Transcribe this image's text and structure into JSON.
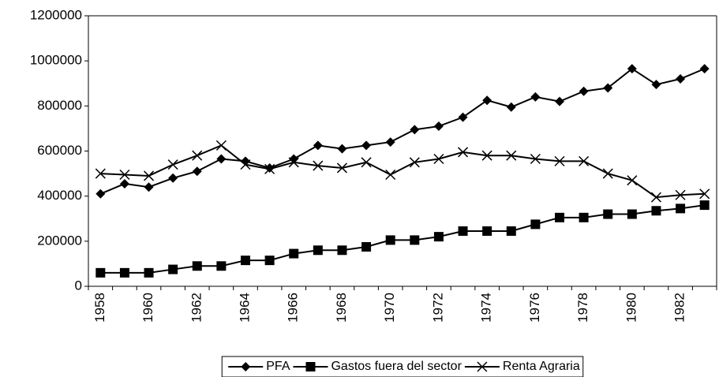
{
  "chart_data": {
    "type": "line",
    "categories": [
      "1958",
      null,
      "1960",
      null,
      "1962",
      null,
      "1964",
      null,
      "1966",
      null,
      "1968",
      null,
      "1970",
      null,
      "1972",
      null,
      "1974",
      null,
      "1976",
      null,
      "1978",
      null,
      "1980",
      null,
      "1982",
      null
    ],
    "series": [
      {
        "name": "PFA",
        "color": "#000000",
        "marker": "diamond",
        "values": [
          410000,
          455000,
          440000,
          480000,
          510000,
          565000,
          555000,
          525000,
          565000,
          625000,
          610000,
          625000,
          640000,
          695000,
          710000,
          750000,
          825000,
          795000,
          840000,
          820000,
          865000,
          880000,
          965000,
          895000,
          920000,
          965000
        ]
      },
      {
        "name": "Gastos fuera del sector",
        "color": "#000000",
        "marker": "square",
        "values": [
          60000,
          60000,
          60000,
          75000,
          90000,
          90000,
          115000,
          115000,
          145000,
          160000,
          160000,
          175000,
          205000,
          205000,
          220000,
          245000,
          245000,
          245000,
          275000,
          305000,
          305000,
          320000,
          320000,
          335000,
          345000,
          360000
        ]
      },
      {
        "name": "Renta Agraria",
        "color": "#000000",
        "marker": "x",
        "values": [
          500000,
          495000,
          490000,
          540000,
          580000,
          625000,
          540000,
          520000,
          550000,
          535000,
          525000,
          550000,
          495000,
          550000,
          565000,
          595000,
          580000,
          580000,
          565000,
          555000,
          555000,
          500000,
          470000,
          395000,
          405000,
          410000
        ]
      }
    ],
    "ylim": [
      0,
      1200000
    ],
    "yticks": [
      0,
      200000,
      400000,
      600000,
      800000,
      1000000,
      1200000
    ],
    "grid": false,
    "legend": "bottom"
  }
}
